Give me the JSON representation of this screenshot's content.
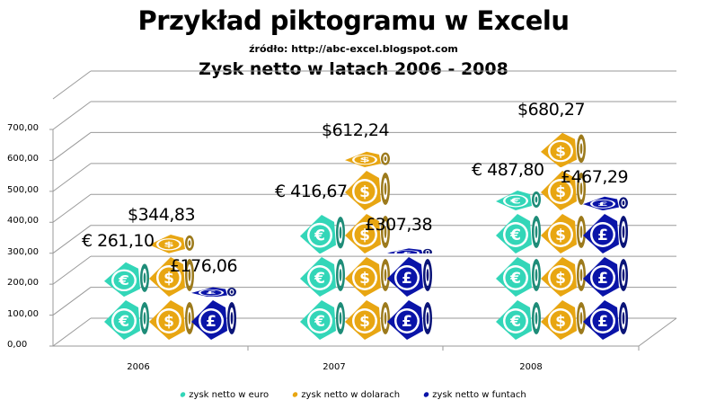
{
  "title": "Przykład piktogramu w Excelu",
  "source": "źródło: http://abc-excel.blogspot.com",
  "subtitle": "Zysk netto w latach 2006 - 2008",
  "colors": {
    "euro": "#33D6B8",
    "euro_side": "#1E8C78",
    "dollar": "#E8A612",
    "dollar_side": "#9C7A1C",
    "pound": "#0A14A8",
    "pound_side": "#0A1478",
    "grid": "#9a9a9a"
  },
  "legend": [
    {
      "label": "zysk netto w euro",
      "color": "#33D6B8"
    },
    {
      "label": "zysk netto w dolarach",
      "color": "#E8A612"
    },
    {
      "label": "zysk netto w funtach",
      "color": "#0A14A8"
    }
  ],
  "chart_data": {
    "type": "bar",
    "subtype": "3d-pictogram",
    "title": "Zysk netto w latach 2006 - 2008",
    "categories": [
      "2006",
      "2007",
      "2008"
    ],
    "series": [
      {
        "name": "zysk netto w euro",
        "symbol": "€",
        "values": [
          261.1,
          416.67,
          487.8
        ],
        "labels": [
          "€ 261,10",
          "€ 416,67",
          "€ 487,80"
        ]
      },
      {
        "name": "zysk netto w dolarach",
        "symbol": "$",
        "values": [
          344.83,
          612.24,
          680.27
        ],
        "labels": [
          "$344,83",
          "$612,24",
          "$680,27"
        ]
      },
      {
        "name": "zysk netto w funtach",
        "symbol": "£",
        "values": [
          176.06,
          307.38,
          467.29
        ],
        "labels": [
          "£176,06",
          "£307,38",
          "£467,29"
        ]
      }
    ],
    "yticks": [
      "0,00",
      "100,00",
      "200,00",
      "300,00",
      "400,00",
      "500,00",
      "600,00",
      "700,00"
    ],
    "ylim": [
      0,
      700
    ],
    "grid": true,
    "legend_position": "bottom",
    "xlabel": "",
    "ylabel": ""
  }
}
